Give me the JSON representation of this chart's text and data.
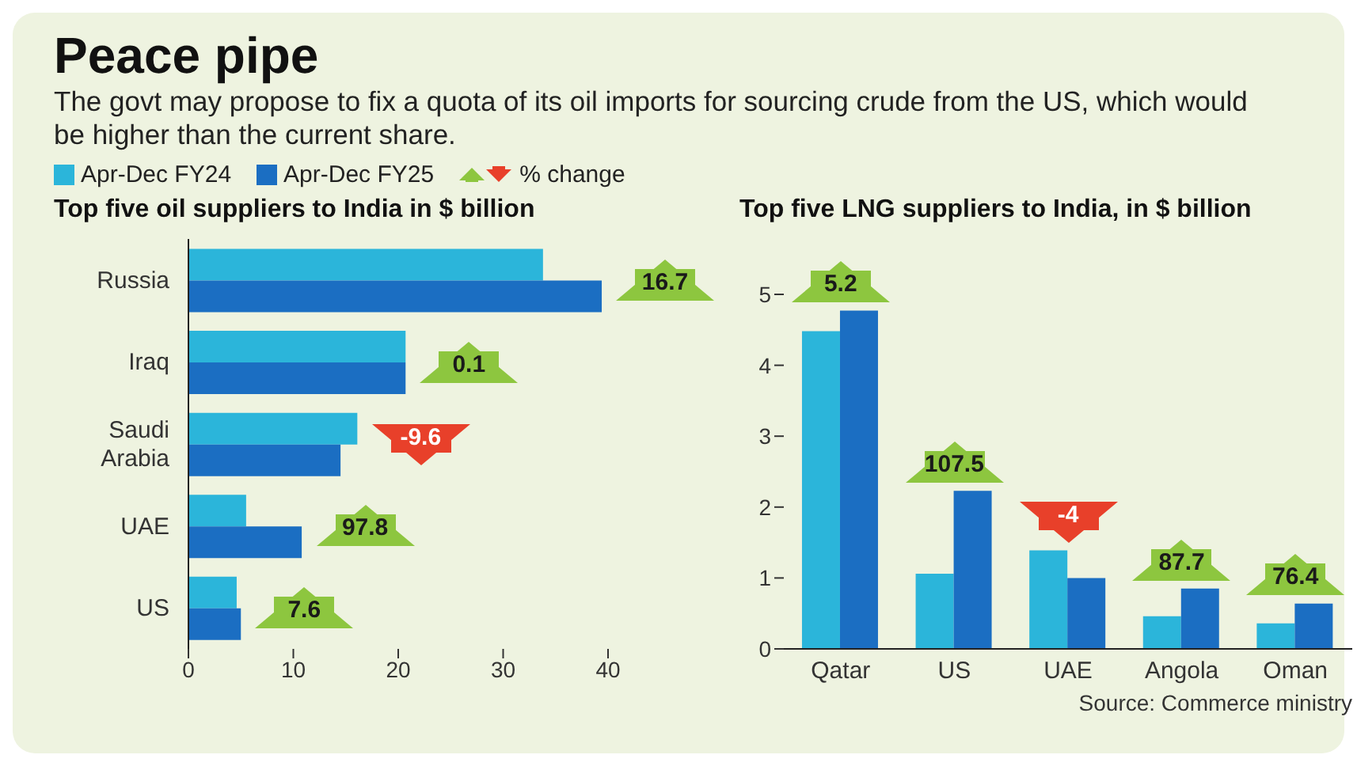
{
  "chart_data": [
    {
      "type": "other",
      "title": "Peace pipe",
      "subtitle": "The govt may propose to fix a quota of its oil imports for sourcing crude from the US, which would be higher than the current share."
    },
    {
      "type": "bar",
      "orientation": "horizontal",
      "title": "Top five oil suppliers to India in $ billion",
      "categories": [
        "Russia",
        "Iraq",
        "Saudi Arabia",
        "UAE",
        "US"
      ],
      "series": [
        {
          "name": "Apr-Dec FY24",
          "color": "#2bb5da",
          "values": [
            33.8,
            20.7,
            16.1,
            5.5,
            4.6
          ]
        },
        {
          "name": "Apr-Dec FY25",
          "color": "#1b6ec2",
          "values": [
            39.4,
            20.7,
            14.5,
            10.8,
            5.0
          ]
        }
      ],
      "xlim": [
        0,
        40
      ],
      "xticks": [
        0,
        10,
        20,
        30,
        40
      ],
      "legend": "top left",
      "annotations": [
        "% change",
        {
          "text": "16.7",
          "x": 39.4,
          "y": "Russia"
        },
        {
          "text": "0.1",
          "x": 20.7,
          "y": "Iraq"
        },
        {
          "text": "-9.6",
          "x": 16.1,
          "y": "Saudi Arabia"
        },
        {
          "text": "97.8",
          "x": 10.8,
          "y": "UAE"
        },
        {
          "text": "7.6",
          "x": 5.0,
          "y": "US"
        }
      ]
    },
    {
      "type": "bar",
      "title": "Top five LNG suppliers to India, in $ billion",
      "categories": [
        "Qatar",
        "US",
        "UAE",
        "Angola",
        "Oman"
      ],
      "series": [
        {
          "color": "#2bb5da",
          "values": [
            4.48,
            1.06,
            1.39,
            0.46,
            0.36
          ]
        },
        {
          "color": "#1b6ec2",
          "values": [
            4.77,
            2.23,
            1.0,
            0.85,
            0.64
          ]
        }
      ],
      "ylim": [
        0,
        5
      ],
      "yticks": [
        0,
        1,
        2,
        3,
        4,
        5
      ],
      "annotations": [
        {
          "text": "5.2",
          "x": "Qatar",
          "y": 4.77
        },
        {
          "text": "107.5",
          "x": "US",
          "y": 2.23
        },
        {
          "text": "-4",
          "x": "UAE",
          "y": 1.39
        },
        {
          "text": "87.7",
          "x": "Angola",
          "y": 0.85
        },
        {
          "text": "76.4",
          "x": "Oman",
          "y": 0.64
        },
        "Source: Commerce ministry"
      ]
    }
  ]
}
